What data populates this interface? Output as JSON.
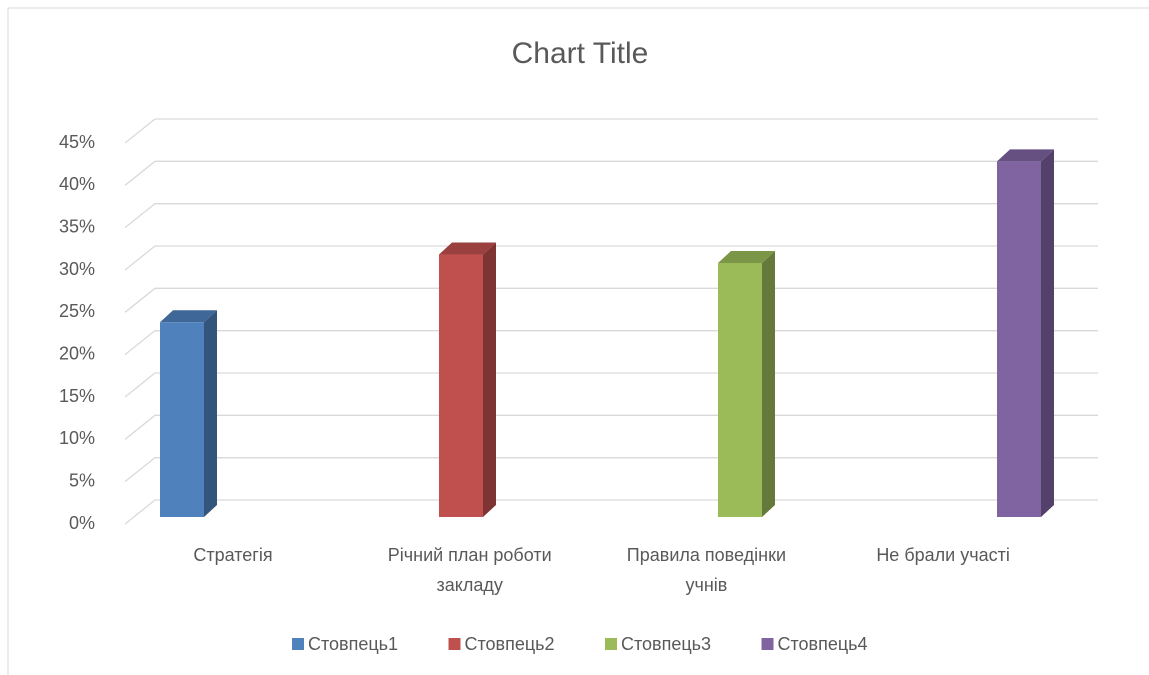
{
  "chart_data": {
    "type": "bar3d",
    "title": "Chart Title",
    "categories": [
      "Стратегія",
      "Річний план роботи закладу",
      "Правила поведінки учнів",
      "Не брали участі"
    ],
    "series": [
      {
        "name": "Стовпець1",
        "color": "#4f81bd",
        "values": [
          23,
          null,
          null,
          null
        ]
      },
      {
        "name": "Стовпець2",
        "color": "#c0504d",
        "values": [
          null,
          31,
          null,
          null
        ]
      },
      {
        "name": "Стовпець3",
        "color": "#9bbb59",
        "values": [
          null,
          null,
          30,
          null
        ]
      },
      {
        "name": "Стовпець4",
        "color": "#8064a2",
        "values": [
          null,
          null,
          null,
          42
        ]
      }
    ],
    "ylim": [
      0,
      45
    ],
    "yticks": [
      {
        "value": 0,
        "label": "0%"
      },
      {
        "value": 5,
        "label": "5%"
      },
      {
        "value": 10,
        "label": "10%"
      },
      {
        "value": 15,
        "label": "15%"
      },
      {
        "value": 20,
        "label": "20%"
      },
      {
        "value": 25,
        "label": "25%"
      },
      {
        "value": 30,
        "label": "30%"
      },
      {
        "value": 35,
        "label": "35%"
      },
      {
        "value": 40,
        "label": "40%"
      },
      {
        "value": 45,
        "label": "45%"
      }
    ],
    "grid": true,
    "legend": "bottom"
  }
}
